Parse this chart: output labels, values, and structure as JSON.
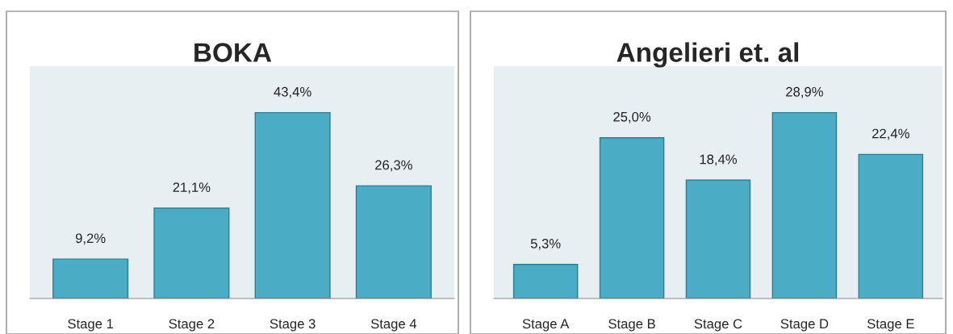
{
  "chart_data": [
    {
      "type": "bar",
      "title": "BOKA",
      "categories": [
        "Stage 1",
        "Stage 2",
        "Stage 3",
        "Stage 4"
      ],
      "series": [
        {
          "color": "#4bacc6",
          "values": [
            9.2,
            21.1,
            43.4,
            26.3
          ],
          "value_labels": [
            "9,2%",
            "21,1%",
            "43,4%",
            "26,3%"
          ]
        }
      ],
      "grid": false,
      "legend": false
    },
    {
      "type": "bar",
      "title": "Angelieri et. al",
      "categories": [
        "Stage A",
        "Stage B",
        "Stage C",
        "Stage D",
        "Stage E"
      ],
      "series": [
        {
          "color": "#4bacc6",
          "values": [
            5.3,
            25.0,
            18.4,
            28.9,
            22.4
          ],
          "value_labels": [
            "5,3%",
            "25,0%",
            "18,4%",
            "28,9%",
            "22,4%"
          ]
        }
      ],
      "grid": false,
      "legend": false
    }
  ]
}
